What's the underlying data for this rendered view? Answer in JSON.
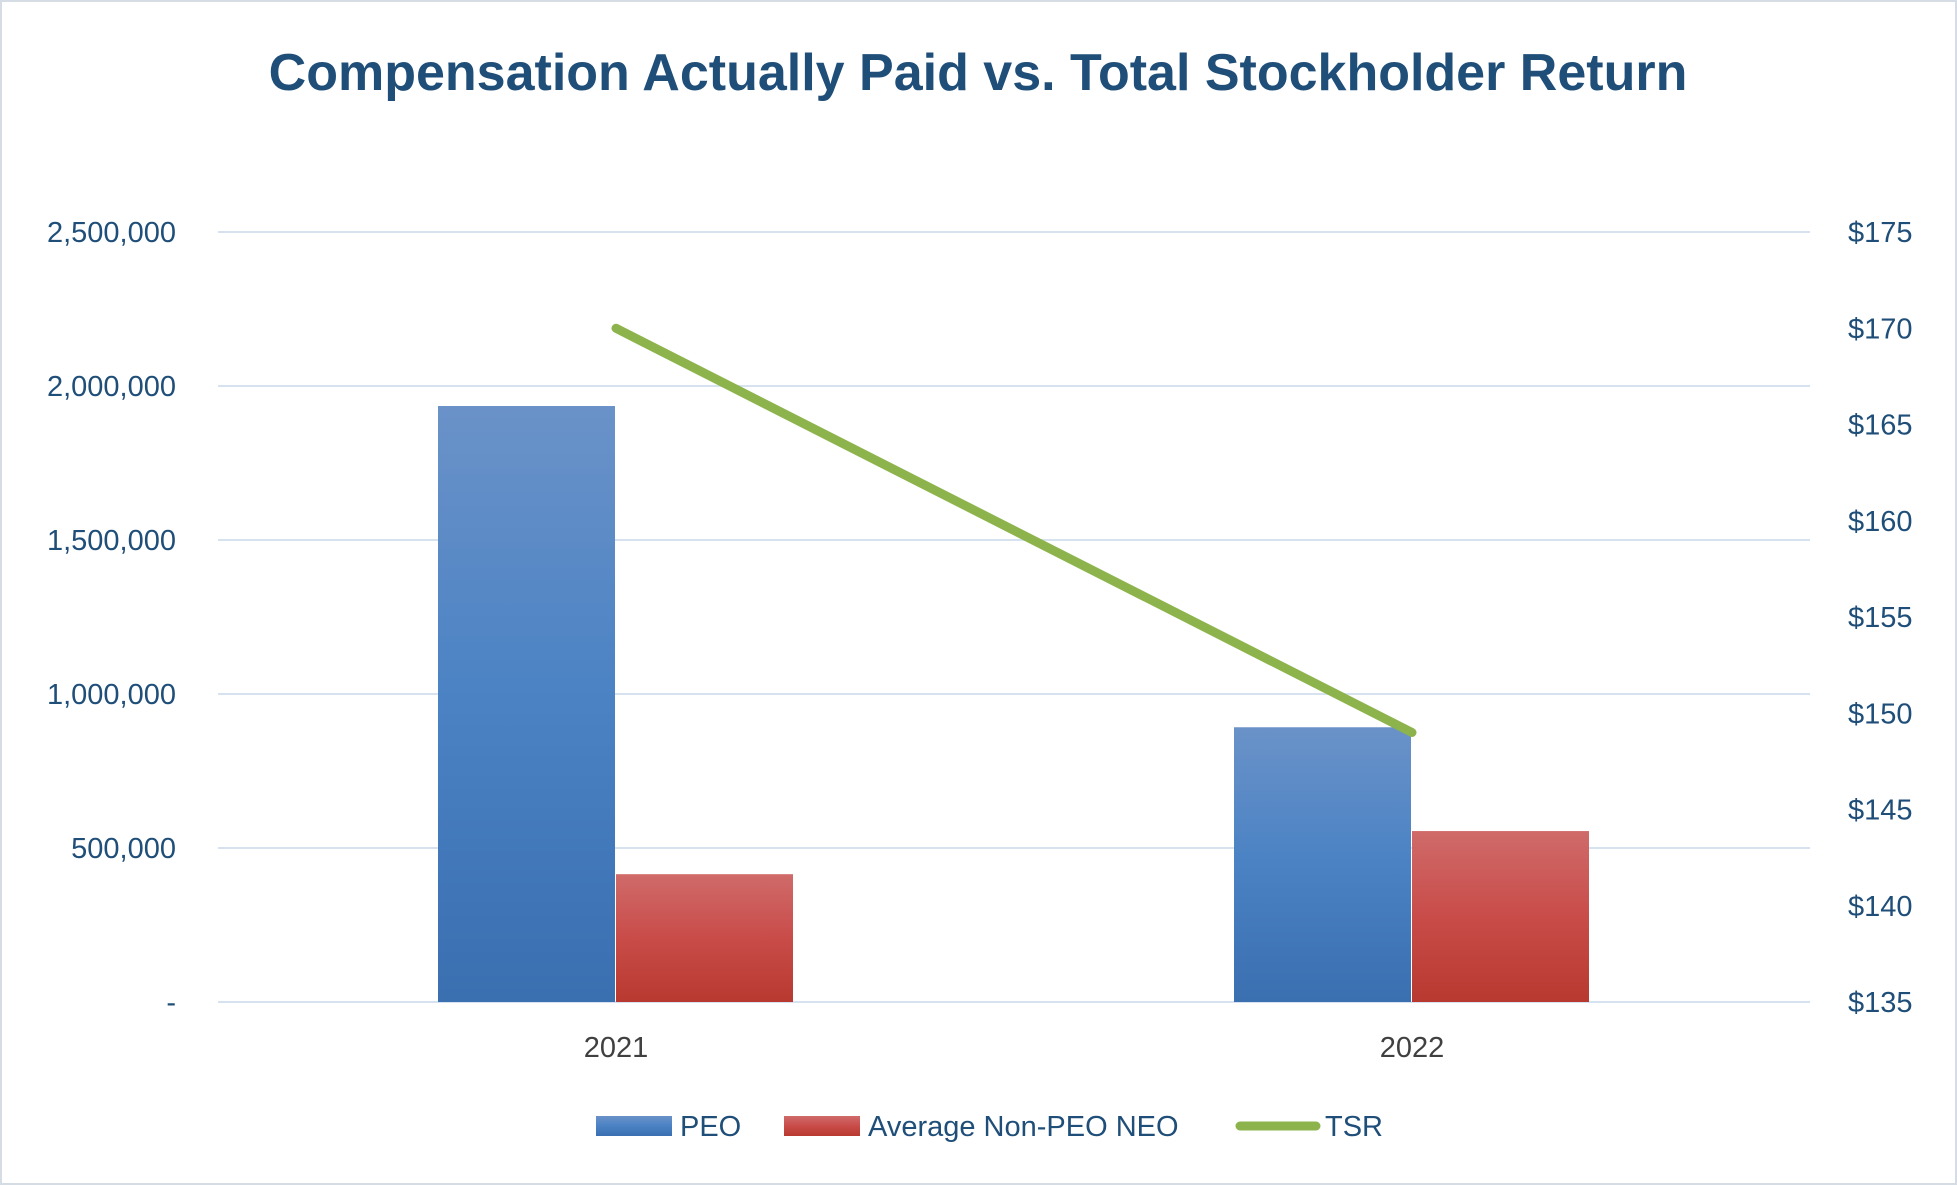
{
  "chart_data": {
    "type": "bar",
    "title": "Compensation Actually Paid vs. Total Stockholder Return",
    "categories": [
      "2021",
      "2022"
    ],
    "series": [
      {
        "name": "PEO",
        "kind": "bar",
        "axis": "left",
        "values": [
          1935000,
          892000
        ]
      },
      {
        "name": "Average Non-PEO NEO",
        "kind": "bar",
        "axis": "left",
        "values": [
          415000,
          555000
        ]
      },
      {
        "name": "TSR",
        "kind": "line",
        "axis": "right",
        "values": [
          170,
          149
        ]
      }
    ],
    "y_left": {
      "ylim": [
        0,
        2500000
      ],
      "ticks": [
        0,
        500000,
        1000000,
        1500000,
        2000000,
        2500000
      ],
      "tick_labels": [
        "-",
        "500,000",
        "1,000,000",
        "1,500,000",
        "2,000,000",
        "2,500,000"
      ]
    },
    "y_right": {
      "ylim": [
        135,
        175
      ],
      "ticks": [
        135,
        140,
        145,
        150,
        155,
        160,
        165,
        170,
        175
      ],
      "tick_labels": [
        "$135",
        "$140",
        "$145",
        "$150",
        "$155",
        "$160",
        "$165",
        "$170",
        "$175"
      ]
    },
    "colors": {
      "PEO": "#4a7fc1",
      "Average Non-PEO NEO": "#c9423f",
      "TSR": "#8db44c"
    },
    "legend_position": "bottom-center",
    "grid": true
  }
}
